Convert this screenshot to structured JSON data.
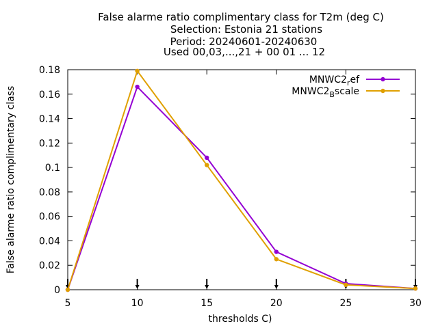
{
  "chart_data": {
    "type": "line",
    "title_lines": [
      "False alarme ratio complimentary class  for T2m (deg C)",
      "Selection: Estonia     21 stations",
      "Period: 20240601-20240630",
      "Used 00,03,...,21 + 00 01 ... 12"
    ],
    "xlabel": "thresholds C)",
    "ylabel": "False alarme ratio complimentary class",
    "xlim": [
      5,
      30
    ],
    "ylim": [
      0,
      0.18
    ],
    "x_ticks": [
      "5",
      "10",
      "15",
      "20",
      "25",
      "30"
    ],
    "y_ticks": [
      "0",
      "0.02",
      "0.04",
      "0.06",
      "0.08",
      "0.1",
      "0.12",
      "0.14",
      "0.16",
      "0.18"
    ],
    "x": [
      5,
      10,
      15,
      20,
      25,
      30
    ],
    "grid": false,
    "legend_position": "top-right",
    "series": [
      {
        "name": "MNWC2_ref",
        "legend_main": "MNWC2",
        "legend_sub": "r",
        "legend_tail": "ef",
        "color": "#9400d3",
        "values": [
          0.0,
          0.166,
          0.108,
          0.031,
          0.005,
          0.001
        ]
      },
      {
        "name": "MNWC2_Bscale",
        "legend_main": "MNWC2",
        "legend_sub": "B",
        "legend_tail": "scale",
        "color": "#e0a000",
        "values": [
          0.0,
          0.179,
          0.102,
          0.025,
          0.004,
          0.001
        ]
      }
    ]
  }
}
